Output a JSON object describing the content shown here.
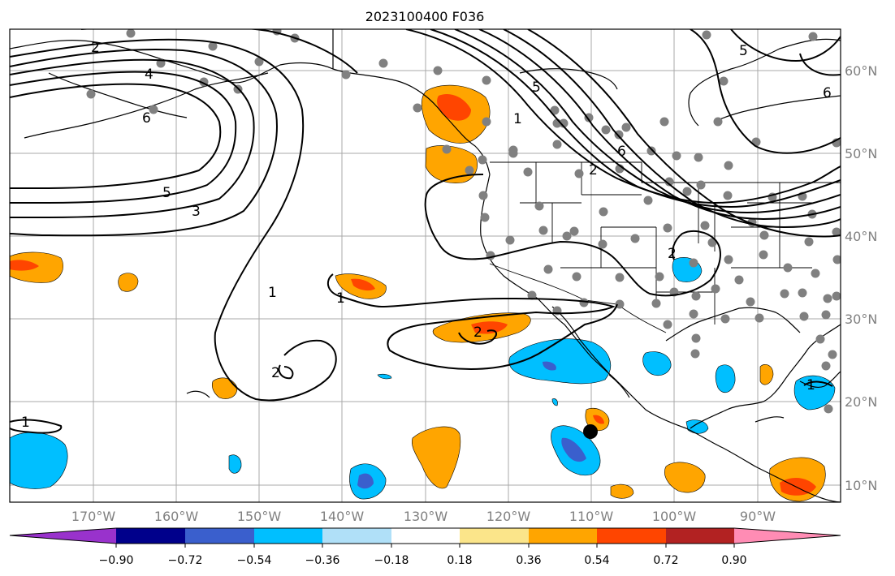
{
  "title": "2023100400 F036",
  "longitude_ticks": [
    "170°W",
    "160°W",
    "150°W",
    "140°W",
    "130°W",
    "120°W",
    "110°W",
    "100°W",
    "90°W"
  ],
  "latitude_ticks": [
    "60°N",
    "50°N",
    "40°N",
    "30°N",
    "20°N",
    "10°N"
  ],
  "contour_labels": [
    "2",
    "4",
    "6",
    "5",
    "3",
    "1",
    "1",
    "2",
    "2",
    "1",
    "5",
    "1",
    "2",
    "6",
    "2",
    "5",
    "6",
    "1"
  ],
  "colorbar": {
    "ticks": [
      "−0.90",
      "−0.72",
      "−0.54",
      "−0.36",
      "−0.18",
      "0.18",
      "0.36",
      "0.54",
      "0.72",
      "0.90"
    ],
    "colors": [
      "#9932cc",
      "#00008b",
      "#3a5fcd",
      "#00bfff",
      "#b0e0f8",
      "#ffffff",
      "#fbe58a",
      "#ffa500",
      "#ff4500",
      "#b22222",
      "#ff8cb4"
    ]
  },
  "marker": "storm-center-dot"
}
